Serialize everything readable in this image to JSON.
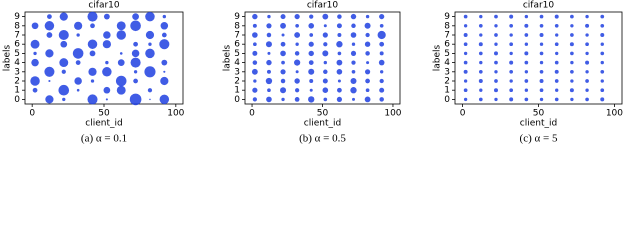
{
  "chart_data": [
    {
      "type": "bubble",
      "title": "cifar10",
      "xlabel": "client_id",
      "ylabel": "labels",
      "caption": "(a) α = 0.1",
      "color": "#1f3fe0",
      "xlim": [
        -5,
        105
      ],
      "ylim": [
        -0.5,
        9.5
      ],
      "xticks": [
        0,
        50,
        100
      ],
      "yticks": [
        0,
        1,
        2,
        3,
        4,
        5,
        6,
        7,
        8,
        9
      ],
      "x": [
        2,
        12,
        22,
        32,
        42,
        52,
        62,
        72,
        82,
        92
      ],
      "series": [
        {
          "y": 0,
          "sizes": [
            0,
            30,
            5,
            0,
            45,
            2,
            0,
            60,
            1,
            40
          ]
        },
        {
          "y": 1,
          "sizes": [
            10,
            0,
            50,
            3,
            0,
            20,
            35,
            0,
            8,
            0
          ]
        },
        {
          "y": 2,
          "sizes": [
            40,
            2,
            0,
            25,
            5,
            0,
            50,
            10,
            0,
            30
          ]
        },
        {
          "y": 3,
          "sizes": [
            0,
            45,
            8,
            0,
            30,
            40,
            0,
            5,
            55,
            2
          ]
        },
        {
          "y": 4,
          "sizes": [
            25,
            0,
            35,
            10,
            0,
            5,
            20,
            45,
            0,
            15
          ]
        },
        {
          "y": 5,
          "sizes": [
            5,
            30,
            0,
            50,
            15,
            0,
            3,
            25,
            40,
            0
          ]
        },
        {
          "y": 6,
          "sizes": [
            35,
            0,
            20,
            0,
            40,
            30,
            0,
            10,
            5,
            45
          ]
        },
        {
          "y": 7,
          "sizes": [
            0,
            15,
            45,
            5,
            0,
            25,
            40,
            0,
            30,
            10
          ]
        },
        {
          "y": 8,
          "sizes": [
            20,
            40,
            0,
            30,
            10,
            0,
            35,
            50,
            0,
            25
          ]
        },
        {
          "y": 9,
          "sizes": [
            0,
            10,
            30,
            0,
            45,
            15,
            0,
            20,
            40,
            5
          ]
        }
      ]
    },
    {
      "type": "bubble",
      "title": "cifar10",
      "xlabel": "client_id",
      "ylabel": "labels",
      "caption": "(b) α = 0.5",
      "color": "#1f3fe0",
      "xlim": [
        -5,
        105
      ],
      "ylim": [
        -0.5,
        9.5
      ],
      "xticks": [
        0,
        50,
        100
      ],
      "yticks": [
        0,
        1,
        2,
        3,
        4,
        5,
        6,
        7,
        8,
        9
      ],
      "x": [
        2,
        12,
        22,
        32,
        42,
        52,
        62,
        72,
        82,
        92
      ],
      "series": [
        {
          "y": 0,
          "sizes": [
            8,
            14,
            5,
            10,
            18,
            6,
            12,
            4,
            15,
            9
          ]
        },
        {
          "y": 1,
          "sizes": [
            12,
            6,
            16,
            8,
            4,
            14,
            10,
            18,
            6,
            11
          ]
        },
        {
          "y": 2,
          "sizes": [
            5,
            18,
            9,
            13,
            7,
            11,
            4,
            16,
            10,
            8
          ]
        },
        {
          "y": 3,
          "sizes": [
            15,
            7,
            12,
            4,
            16,
            9,
            14,
            6,
            12,
            5
          ]
        },
        {
          "y": 4,
          "sizes": [
            9,
            13,
            6,
            17,
            10,
            5,
            15,
            8,
            4,
            14
          ]
        },
        {
          "y": 5,
          "sizes": [
            11,
            4,
            14,
            9,
            13,
            16,
            6,
            12,
            9,
            7
          ]
        },
        {
          "y": 6,
          "sizes": [
            6,
            16,
            10,
            5,
            12,
            8,
            18,
            5,
            13,
            10
          ]
        },
        {
          "y": 7,
          "sizes": [
            14,
            9,
            4,
            15,
            6,
            12,
            7,
            14,
            8,
            30
          ]
        },
        {
          "y": 8,
          "sizes": [
            7,
            12,
            15,
            6,
            14,
            4,
            11,
            9,
            16,
            6
          ]
        },
        {
          "y": 9,
          "sizes": [
            13,
            5,
            11,
            12,
            8,
            15,
            9,
            13,
            5,
            12
          ]
        }
      ]
    },
    {
      "type": "bubble",
      "title": "cifar10",
      "xlabel": "client_id",
      "ylabel": "labels",
      "caption": "(c) α = 5",
      "color": "#1f3fe0",
      "xlim": [
        -5,
        105
      ],
      "ylim": [
        -0.5,
        9.5
      ],
      "xticks": [
        0,
        50,
        100
      ],
      "yticks": [
        0,
        1,
        2,
        3,
        4,
        5,
        6,
        7,
        8,
        9
      ],
      "x": [
        2,
        12,
        22,
        32,
        42,
        52,
        62,
        72,
        82,
        92
      ],
      "series": [
        {
          "y": 0,
          "sizes": [
            5,
            6,
            5,
            7,
            6,
            5,
            6,
            5,
            6,
            7
          ]
        },
        {
          "y": 1,
          "sizes": [
            6,
            5,
            7,
            6,
            5,
            6,
            5,
            7,
            5,
            6
          ]
        },
        {
          "y": 2,
          "sizes": [
            5,
            7,
            6,
            5,
            6,
            7,
            6,
            5,
            6,
            5
          ]
        },
        {
          "y": 3,
          "sizes": [
            7,
            6,
            5,
            6,
            5,
            6,
            7,
            6,
            5,
            6
          ]
        },
        {
          "y": 4,
          "sizes": [
            6,
            5,
            6,
            7,
            6,
            5,
            6,
            5,
            7,
            5
          ]
        },
        {
          "y": 5,
          "sizes": [
            5,
            6,
            7,
            5,
            7,
            6,
            5,
            6,
            5,
            6
          ]
        },
        {
          "y": 6,
          "sizes": [
            6,
            7,
            5,
            6,
            5,
            5,
            6,
            7,
            6,
            5
          ]
        },
        {
          "y": 7,
          "sizes": [
            7,
            5,
            6,
            5,
            6,
            7,
            5,
            6,
            5,
            7
          ]
        },
        {
          "y": 8,
          "sizes": [
            5,
            6,
            5,
            6,
            7,
            6,
            6,
            5,
            7,
            6
          ]
        },
        {
          "y": 9,
          "sizes": [
            6,
            5,
            6,
            7,
            5,
            6,
            7,
            6,
            5,
            6
          ]
        }
      ]
    }
  ]
}
